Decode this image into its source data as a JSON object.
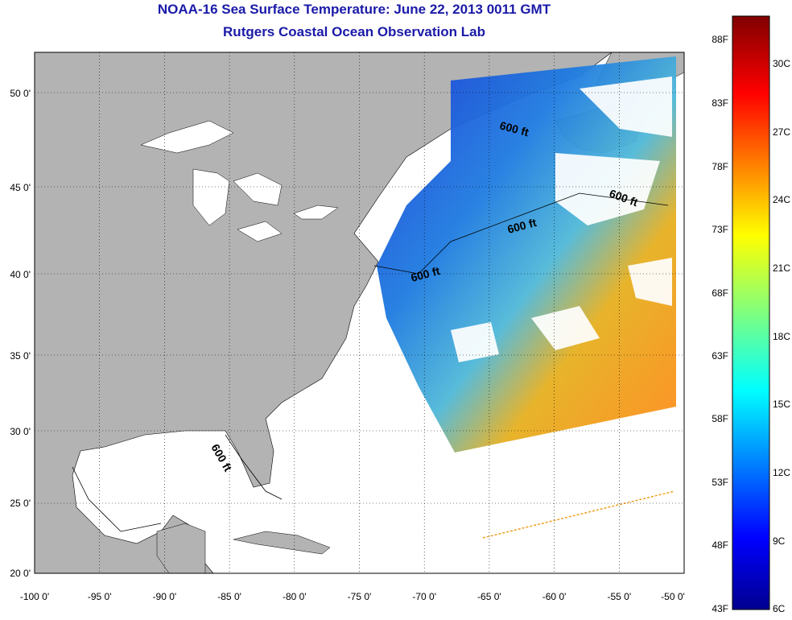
{
  "title": {
    "line1": "NOAA-16 Sea Surface Temperature:  June 22, 2013 0011 GMT",
    "line2": "Rutgers Coastal Ocean Observation Lab"
  },
  "axes": {
    "x_ticks": [
      "-100 0'",
      "-95 0'",
      "-90 0'",
      "-85 0'",
      "-80 0'",
      "-75 0'",
      "-70 0'",
      "-65 0'",
      "-60 0'",
      "-55 0'",
      "-50 0'"
    ],
    "y_ticks": [
      "20 0'",
      "25 0'",
      "30 0'",
      "35 0'",
      "40 0'",
      "45 0'",
      "50 0'"
    ]
  },
  "contour_labels": [
    "600 ft",
    "600 ft",
    "600 ft",
    "600 ft",
    "600 ft"
  ],
  "colorbar": {
    "fahrenheit": [
      "88F",
      "83F",
      "78F",
      "73F",
      "68F",
      "63F",
      "58F",
      "53F",
      "48F",
      "43F"
    ],
    "celsius": [
      "30C",
      "27C",
      "24C",
      "21C",
      "18C",
      "15C",
      "12C",
      "9C",
      "6C"
    ]
  },
  "colors": {
    "land": "#b3b3b3",
    "ocean": "#ffffff",
    "title": "#1a1aa8",
    "jet_low": "#00008f",
    "jet_high": "#800000"
  }
}
